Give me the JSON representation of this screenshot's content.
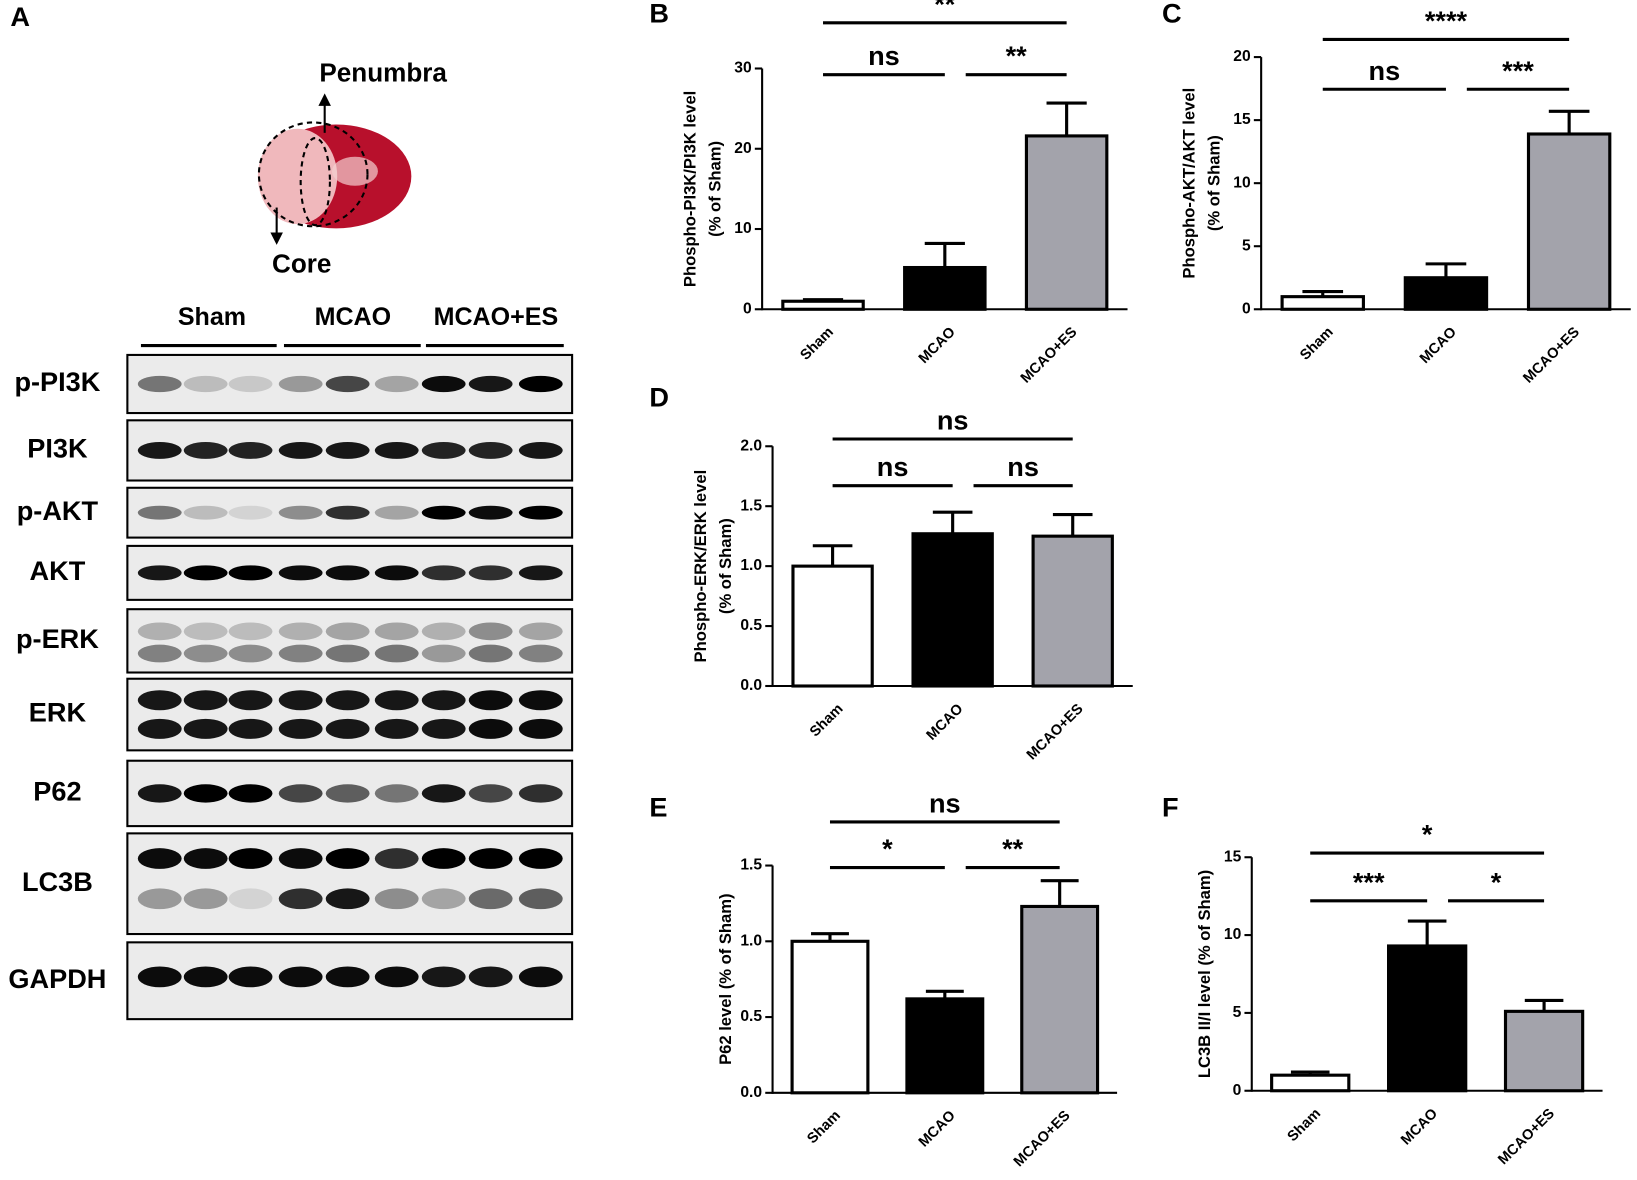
{
  "panel_a": {
    "label": "A",
    "penumbra": "Penumbra",
    "core": "Core",
    "groups": [
      "Sham",
      "MCAO",
      "MCAO+ES"
    ],
    "proteins": [
      "p-PI3K",
      "PI3K",
      "p-AKT",
      "AKT",
      "p-ERK",
      "ERK",
      "P62",
      "LC3B",
      "GAPDH"
    ]
  },
  "chart_data": [
    {
      "type": "bar",
      "panel": "B",
      "ylabel": [
        "Phospho-PI3K/PI3K level",
        "(% of Sham)"
      ],
      "categories": [
        "Sham",
        "MCAO",
        "MCAO+ES"
      ],
      "values": [
        1.0,
        5.2,
        21.6
      ],
      "errors": [
        0.2,
        3.0,
        4.1
      ],
      "colors": [
        "#ffffff",
        "#000000",
        "#a3a3ab"
      ],
      "edgecolor": "#000000",
      "ylim": [
        0,
        30
      ],
      "yticks": [
        0,
        10,
        20,
        30
      ],
      "brackets": [
        {
          "label": "ns",
          "span": [
            0,
            1
          ]
        },
        {
          "label": "**",
          "span": [
            1,
            2
          ]
        },
        {
          "label": "**",
          "span": [
            0,
            2
          ]
        }
      ]
    },
    {
      "type": "bar",
      "panel": "C",
      "ylabel": [
        "Phospho-AKT/AKT level",
        "(% of Sham)"
      ],
      "categories": [
        "Sham",
        "MCAO",
        "MCAO+ES"
      ],
      "values": [
        1.0,
        2.5,
        13.9
      ],
      "errors": [
        0.4,
        1.1,
        1.8
      ],
      "colors": [
        "#ffffff",
        "#000000",
        "#a3a3ab"
      ],
      "edgecolor": "#000000",
      "ylim": [
        0,
        20
      ],
      "yticks": [
        0,
        5,
        10,
        15,
        20
      ],
      "brackets": [
        {
          "label": "ns",
          "span": [
            0,
            1
          ]
        },
        {
          "label": "***",
          "span": [
            1,
            2
          ]
        },
        {
          "label": "****",
          "span": [
            0,
            2
          ]
        }
      ]
    },
    {
      "type": "bar",
      "panel": "D",
      "ylabel": [
        "Phospho-ERK/ERK level",
        "(% of Sham)"
      ],
      "categories": [
        "Sham",
        "MCAO",
        "MCAO+ES"
      ],
      "values": [
        1.0,
        1.27,
        1.25
      ],
      "errors": [
        0.17,
        0.18,
        0.18
      ],
      "colors": [
        "#ffffff",
        "#000000",
        "#a3a3ab"
      ],
      "edgecolor": "#000000",
      "ylim": [
        0,
        2.0
      ],
      "yticks": [
        {
          "value": 0,
          "label": "0.0"
        },
        0.5,
        {
          "value": 1,
          "label": "1.0"
        },
        1.5,
        {
          "value": 2,
          "label": "2.0"
        }
      ],
      "brackets": [
        {
          "label": "ns",
          "span": [
            0,
            1
          ]
        },
        {
          "label": "ns",
          "span": [
            1,
            2
          ]
        },
        {
          "label": "ns",
          "span": [
            0,
            2
          ]
        }
      ]
    },
    {
      "type": "bar",
      "panel": "E",
      "ylabel": [
        "P62 level (% of Sham)"
      ],
      "categories": [
        "Sham",
        "MCAO",
        "MCAO+ES"
      ],
      "values": [
        1.0,
        0.62,
        1.23
      ],
      "errors": [
        0.05,
        0.05,
        0.17
      ],
      "colors": [
        "#ffffff",
        "#000000",
        "#a3a3ab"
      ],
      "edgecolor": "#000000",
      "ylim": [
        0,
        1.5
      ],
      "yticks": [
        {
          "value": 0,
          "label": "0.0"
        },
        0.5,
        {
          "value": 1,
          "label": "1.0"
        },
        1.5
      ],
      "brackets": [
        {
          "label": "*",
          "span": [
            0,
            1
          ]
        },
        {
          "label": "**",
          "span": [
            1,
            2
          ]
        },
        {
          "label": "ns",
          "span": [
            0,
            2
          ]
        }
      ]
    },
    {
      "type": "bar",
      "panel": "F",
      "ylabel": [
        "LC3B II/I level (% of Sham)"
      ],
      "categories": [
        "Sham",
        "MCAO",
        "MCAO+ES"
      ],
      "values": [
        1.0,
        9.3,
        5.1
      ],
      "errors": [
        0.2,
        1.6,
        0.7
      ],
      "colors": [
        "#ffffff",
        "#000000",
        "#a3a3ab"
      ],
      "edgecolor": "#000000",
      "ylim": [
        0,
        15
      ],
      "yticks": [
        0,
        5,
        10,
        15
      ],
      "brackets": [
        {
          "label": "***",
          "span": [
            0,
            1
          ]
        },
        {
          "label": "*",
          "span": [
            1,
            2
          ]
        },
        {
          "label": "*",
          "span": [
            0,
            2
          ]
        }
      ]
    }
  ]
}
